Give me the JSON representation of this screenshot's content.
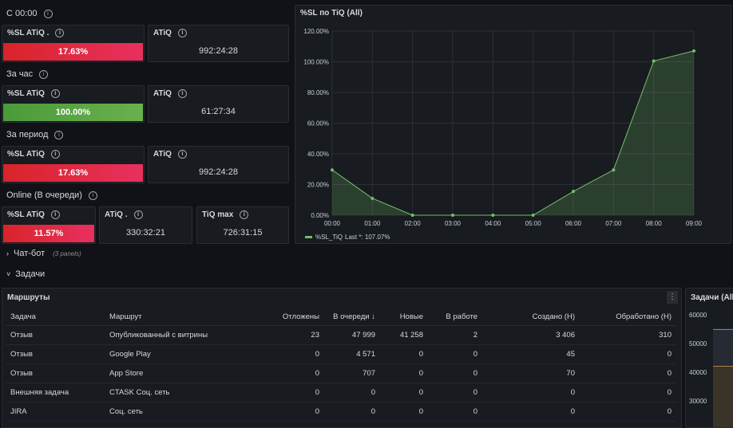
{
  "groups": [
    {
      "title": "С 00:00",
      "sl_label": "%SL ATiQ .",
      "sl_value": "17.63%",
      "atiq_label": "ATiQ",
      "atiq_value": "992:24:28",
      "status": "red"
    },
    {
      "title": "За час",
      "sl_label": "%SL ATiQ",
      "sl_value": "100.00%",
      "atiq_label": "ATiQ",
      "atiq_value": "61:27:34",
      "status": "green"
    },
    {
      "title": "За период",
      "sl_label": "%SL ATiQ",
      "sl_value": "17.63%",
      "atiq_label": "ATiQ",
      "atiq_value": "992:24:28",
      "status": "red"
    }
  ],
  "online": {
    "title": "Online (В очереди)",
    "sl_label": "%SL ATiQ",
    "sl_value": "11.57%",
    "atiq_label": "ATiQ .",
    "atiq_value": "330:32:21",
    "tiq_label": "TiQ max",
    "tiq_value": "726:31:15"
  },
  "chart_panel": {
    "title": "%SL по TiQ (All)"
  },
  "chart_data": {
    "type": "area",
    "x": [
      "00:00",
      "01:00",
      "02:00",
      "03:00",
      "04:00",
      "05:00",
      "06:00",
      "07:00",
      "08:00",
      "09:00"
    ],
    "y_ticks": [
      "0.00%",
      "20.00%",
      "40.00%",
      "60.00%",
      "80.00%",
      "100.00%",
      "120.00%"
    ],
    "ylim": [
      0,
      120
    ],
    "series": [
      {
        "name": "%SL_TiQ",
        "values": [
          29.5,
          11,
          0,
          0,
          0,
          0,
          15.5,
          29.5,
          100.5,
          107.07
        ],
        "color": "#73bf69"
      }
    ],
    "legend": {
      "name": "%SL_TiQ",
      "last": "Last *: 107.07%"
    },
    "grid": true,
    "legend_placement": "bottom-left"
  },
  "chatbot": {
    "label": "Чат-бот",
    "panels": "(3 panels)"
  },
  "tasks": {
    "label": "Задачи"
  },
  "routes": {
    "title": "Маршруты",
    "menu_icon": "⋮",
    "columns": [
      "Задача",
      "Маршрут",
      "Отложены",
      "В очереди ↓",
      "Новые",
      "В работе",
      "Создано (Н)",
      "Обработано (Н)"
    ],
    "rows": [
      [
        "Отзыв",
        "Опубликованный с витрины",
        "23",
        "47 999",
        "41 258",
        "2",
        "3 406",
        "310"
      ],
      [
        "Отзыв",
        "Google Play",
        "0",
        "4 571",
        "0",
        "0",
        "45",
        "0"
      ],
      [
        "Отзыв",
        "App Store",
        "0",
        "707",
        "0",
        "0",
        "70",
        "0"
      ],
      [
        "Внешняя задача",
        "CTASK Соц. сеть",
        "0",
        "0",
        "0",
        "0",
        "0",
        "0"
      ],
      [
        "JIRA",
        "Соц. сеть",
        "0",
        "0",
        "0",
        "0",
        "0",
        "0"
      ]
    ]
  },
  "tasks_all": {
    "title": "Задачи (All)",
    "y_ticks": [
      "60000",
      "50000",
      "40000",
      "30000"
    ]
  },
  "colors": {
    "red": "#e02f44",
    "green": "#6ab04c",
    "line": "#73bf69",
    "background": "#111217",
    "panel": "#181b1f"
  }
}
